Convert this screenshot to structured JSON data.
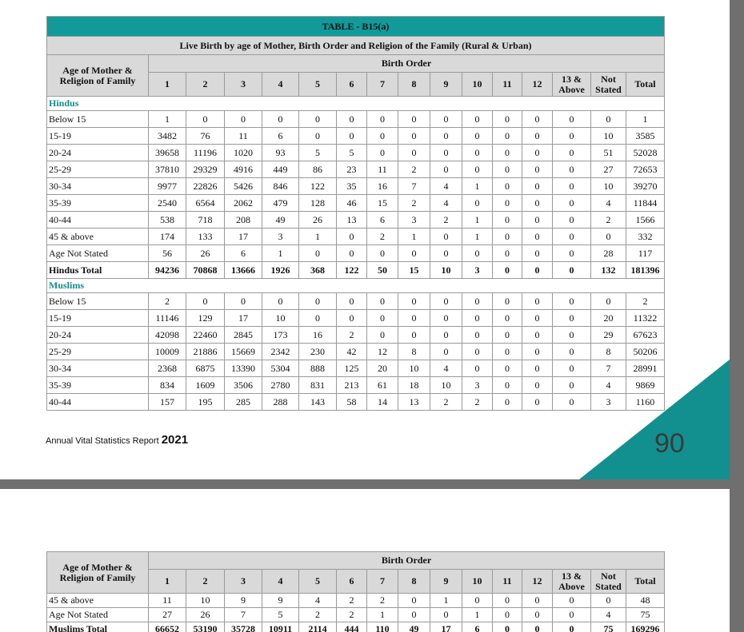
{
  "page1": {
    "table": {
      "title": "TABLE - B15(a)",
      "subtitle": "Live Birth by age of Mother, Birth Order and Religion of the Family (Rural & Urban)",
      "corner": "Age of Mother & Religion of Family",
      "group_header": "Birth Order",
      "columns": [
        "1",
        "2",
        "3",
        "4",
        "5",
        "6",
        "7",
        "8",
        "9",
        "10",
        "11",
        "12",
        "13 & Above",
        "Not Stated",
        "Total"
      ],
      "rows": [
        {
          "section": "Hindus"
        },
        {
          "label": "Below 15",
          "cells": [
            1,
            0,
            0,
            0,
            0,
            0,
            0,
            0,
            0,
            0,
            0,
            0,
            0,
            0,
            1
          ]
        },
        {
          "label": "15-19",
          "cells": [
            3482,
            76,
            11,
            6,
            0,
            0,
            0,
            0,
            0,
            0,
            0,
            0,
            0,
            10,
            3585
          ]
        },
        {
          "label": "20-24",
          "cells": [
            39658,
            11196,
            1020,
            93,
            5,
            5,
            0,
            0,
            0,
            0,
            0,
            0,
            0,
            51,
            52028
          ]
        },
        {
          "label": "25-29",
          "cells": [
            37810,
            29329,
            4916,
            449,
            86,
            23,
            11,
            2,
            0,
            0,
            0,
            0,
            0,
            27,
            72653
          ]
        },
        {
          "label": "30-34",
          "cells": [
            9977,
            22826,
            5426,
            846,
            122,
            35,
            16,
            7,
            4,
            1,
            0,
            0,
            0,
            10,
            39270
          ]
        },
        {
          "label": "35-39",
          "cells": [
            2540,
            6564,
            2062,
            479,
            128,
            46,
            15,
            2,
            4,
            0,
            0,
            0,
            0,
            4,
            11844
          ]
        },
        {
          "label": "40-44",
          "cells": [
            538,
            718,
            208,
            49,
            26,
            13,
            6,
            3,
            2,
            1,
            0,
            0,
            0,
            2,
            1566
          ]
        },
        {
          "label": "45 & above",
          "cells": [
            174,
            133,
            17,
            3,
            1,
            0,
            2,
            1,
            0,
            1,
            0,
            0,
            0,
            0,
            332
          ]
        },
        {
          "label": "Age Not Stated",
          "cells": [
            56,
            26,
            6,
            1,
            0,
            0,
            0,
            0,
            0,
            0,
            0,
            0,
            0,
            28,
            117
          ]
        },
        {
          "label": "Hindus Total",
          "total": true,
          "cells": [
            94236,
            70868,
            13666,
            1926,
            368,
            122,
            50,
            15,
            10,
            3,
            0,
            0,
            0,
            132,
            181396
          ]
        },
        {
          "section": "Muslims"
        },
        {
          "label": "Below 15",
          "cells": [
            2,
            0,
            0,
            0,
            0,
            0,
            0,
            0,
            0,
            0,
            0,
            0,
            0,
            0,
            2
          ]
        },
        {
          "label": "15-19",
          "cells": [
            11146,
            129,
            17,
            10,
            0,
            0,
            0,
            0,
            0,
            0,
            0,
            0,
            0,
            20,
            11322
          ]
        },
        {
          "label": "20-24",
          "cells": [
            42098,
            22460,
            2845,
            173,
            16,
            2,
            0,
            0,
            0,
            0,
            0,
            0,
            0,
            29,
            67623
          ]
        },
        {
          "label": "25-29",
          "cells": [
            10009,
            21886,
            15669,
            2342,
            230,
            42,
            12,
            8,
            0,
            0,
            0,
            0,
            0,
            8,
            50206
          ]
        },
        {
          "label": "30-34",
          "cells": [
            2368,
            6875,
            13390,
            5304,
            888,
            125,
            20,
            10,
            4,
            0,
            0,
            0,
            0,
            7,
            28991
          ]
        },
        {
          "label": "35-39",
          "cells": [
            834,
            1609,
            3506,
            2780,
            831,
            213,
            61,
            18,
            10,
            3,
            0,
            0,
            0,
            4,
            9869
          ]
        },
        {
          "label": "40-44",
          "cells": [
            157,
            195,
            285,
            288,
            143,
            58,
            14,
            13,
            2,
            2,
            0,
            0,
            0,
            3,
            1160
          ]
        }
      ]
    },
    "footer": {
      "report": "Annual Vital Statistics Report",
      "year": "2021",
      "page_number": "90"
    }
  },
  "page2": {
    "table": {
      "corner": "Age of Mother & Religion of Family",
      "group_header": "Birth Order",
      "columns": [
        "1",
        "2",
        "3",
        "4",
        "5",
        "6",
        "7",
        "8",
        "9",
        "10",
        "11",
        "12",
        "13 & Above",
        "Not Stated",
        "Total"
      ],
      "rows": [
        {
          "label": "45 & above",
          "cells": [
            11,
            10,
            9,
            9,
            4,
            2,
            2,
            0,
            1,
            0,
            0,
            0,
            0,
            0,
            48
          ]
        },
        {
          "label": "Age Not Stated",
          "cells": [
            27,
            26,
            7,
            5,
            2,
            2,
            1,
            0,
            0,
            1,
            0,
            0,
            0,
            4,
            75
          ]
        },
        {
          "label": "Muslims Total",
          "total": true,
          "cells": [
            66652,
            53190,
            35728,
            10911,
            2114,
            444,
            110,
            49,
            17,
            6,
            0,
            0,
            0,
            75,
            169296
          ]
        }
      ]
    }
  }
}
